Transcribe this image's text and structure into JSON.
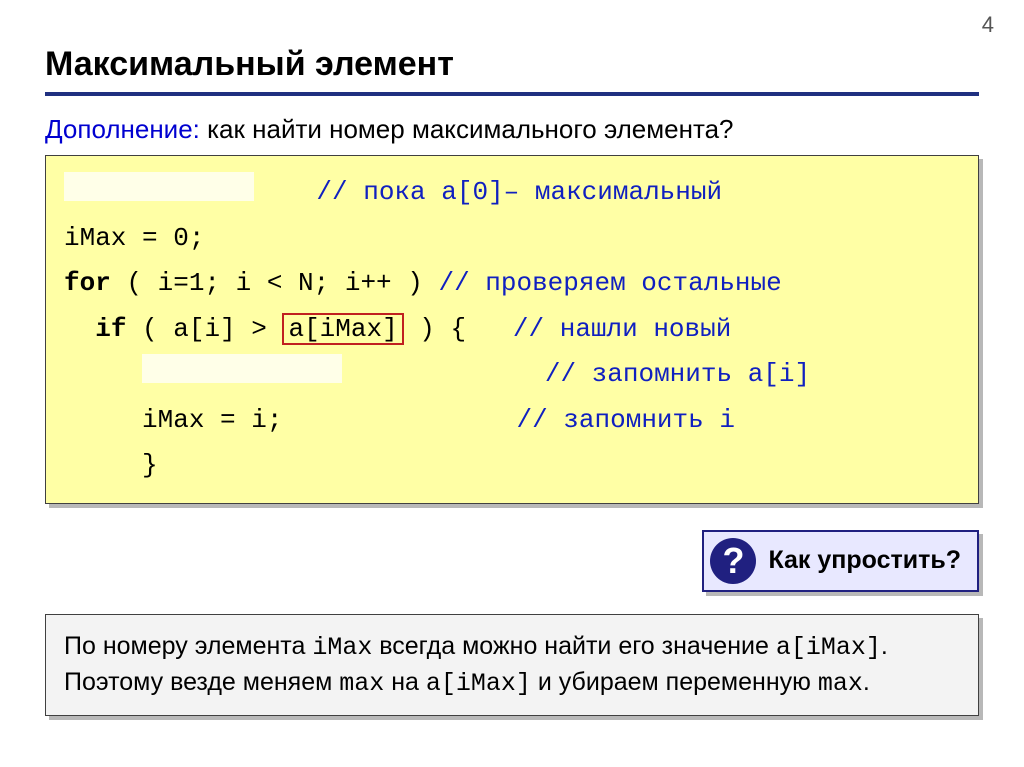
{
  "page_number": "4",
  "title": "Максимальный элемент",
  "subtitle_blue": "Дополнение:",
  "subtitle_rest": " как найти номер максимального элемента?",
  "code": {
    "c1_comment": "// пока a[0]– максимальный",
    "c2": "iMax = 0;",
    "c3_for": "for",
    "c3_rest": " ( i=1; i < N; i++ ) ",
    "c3_comment": "// проверяем остальные",
    "c4_if": "if",
    "c4_open": " ( a[i] > ",
    "c4_box": "a[iMax]",
    "c4_close": " ) {   ",
    "c4_comment": "// нашли новый",
    "c5_comment": "// запомнить a[i]",
    "c6_code": "iMax = i;",
    "c6_comment": "// запомнить i",
    "c7": "}"
  },
  "question_icon": "?",
  "question_text": "Как упростить?",
  "note": {
    "p1a": "По номеру элемента ",
    "p1_imax": "iMax",
    "p1b": " всегда можно найти его значение ",
    "p1_aimax": "a[iMax]",
    "p1c": ". Поэтому везде меняем ",
    "p1_max": "max",
    "p1d": " на ",
    "p1_aimax2": "a[iMax]",
    "p1e": " и убираем переменную ",
    "p1_max2": "max",
    "p1f": "."
  },
  "colors": {
    "title_underline": "#203080",
    "code_bg": "#ffffa5",
    "comment": "#1020c0",
    "highlight_border": "#c02020",
    "question_bg": "#e8e8ff",
    "question_border": "#202080",
    "note_bg": "#f3f3f3",
    "shadow": "#b8b8b8"
  },
  "fonts": {
    "title_size_pt": 26,
    "body_size_pt": 20,
    "code_family": "Courier New"
  }
}
